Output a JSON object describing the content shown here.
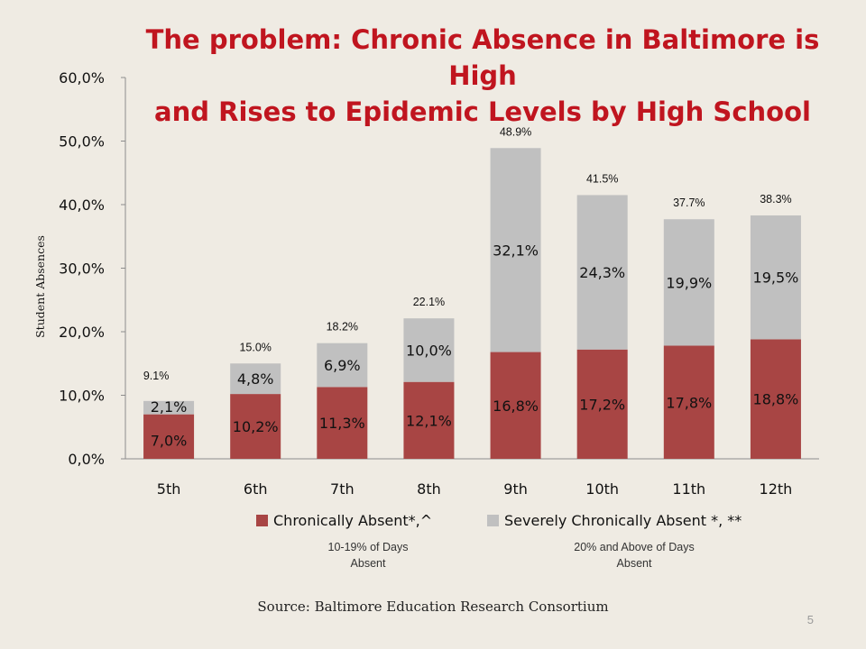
{
  "title_line1": "The problem: Chronic Absence in Baltimore is High",
  "title_line2": "and Rises to Epidemic Levels by High School",
  "source": "Source: Baltimore Education Research Consortium",
  "page_number": "5",
  "legend_notes": [
    "10-19% of Days Absent",
    "20% and Above of Days Absent"
  ],
  "colors": {
    "chronic": "#a84544",
    "severe": "#c0c0c0",
    "title": "#c0151f",
    "background": "#efebe3"
  },
  "chart_data": {
    "type": "bar",
    "stacked": true,
    "title": "The problem: Chronic Absence in Baltimore is High and Rises to Epidemic Levels by High School",
    "xlabel": "",
    "ylabel": "Student Absences",
    "ylim": [
      0,
      60
    ],
    "yticks": [
      "0,0%",
      "10,0%",
      "20,0%",
      "30,0%",
      "40,0%",
      "50,0%",
      "60,0%"
    ],
    "categories": [
      "5th",
      "6th",
      "7th",
      "8th",
      "9th",
      "10th",
      "11th",
      "12th"
    ],
    "series": [
      {
        "name": "Chronically Absent*,^",
        "values": [
          7.0,
          10.2,
          11.3,
          12.1,
          16.8,
          17.2,
          17.8,
          18.8
        ],
        "labels": [
          "7,0%",
          "10,2%",
          "11,3%",
          "12,1%",
          "16,8%",
          "17,2%",
          "17,8%",
          "18,8%"
        ]
      },
      {
        "name": "Severely Chronically Absent *, **",
        "values": [
          2.1,
          4.8,
          6.9,
          10.0,
          32.1,
          24.3,
          19.9,
          19.5
        ],
        "labels": [
          "2,1%",
          "4,8%",
          "6,9%",
          "10,0%",
          "32,1%",
          "24,3%",
          "19,9%",
          "19,5%"
        ]
      }
    ],
    "totals": [
      9.1,
      15.0,
      18.2,
      22.1,
      48.9,
      41.5,
      37.7,
      38.3
    ],
    "total_labels": [
      "9.1%",
      "15.0%",
      "18.2%",
      "22.1%",
      "48.9%",
      "41.5%",
      "37.7%",
      "38.3%"
    ],
    "legend": "bottom",
    "grid": false
  }
}
